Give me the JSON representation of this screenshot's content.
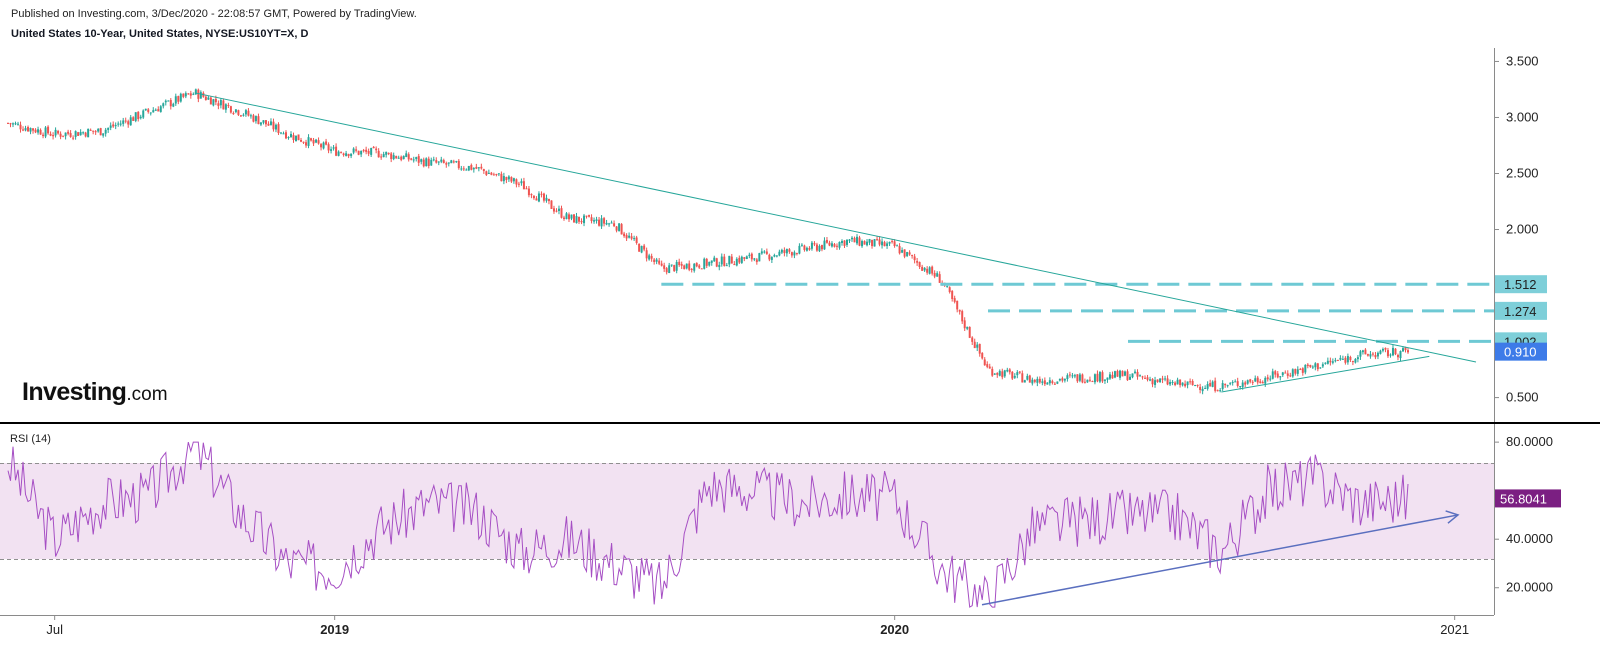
{
  "header": {
    "published": "Published on Investing.com, 3/Dec/2020 - 22:08:57 GMT, Powered by TradingView.",
    "symbol": "United States 10-Year, United States, NYSE:US10YT=X, D"
  },
  "logo": {
    "brand": "Investing",
    "suffix": ".com"
  },
  "colors": {
    "up": "#26a69a",
    "down": "#ef5350",
    "trendline": "#26a69a",
    "level": "#6ec9d4",
    "level_bg": "#7ecfd9",
    "current_bg": "#3d7be8",
    "rsi_line": "#a64fc4",
    "rsi_band": "#f2e2f2",
    "rsi_label_bg": "#7b1f82",
    "rsi_arrow": "#5a6fbf"
  },
  "chart_data": [
    {
      "type": "candlestick",
      "title": "United States 10-Year, United States, NYSE:US10YT=X, D",
      "y_ticks": [
        "3.500",
        "3.000",
        "2.500",
        "2.000",
        "1.500",
        "1.000",
        "0.500"
      ],
      "ylim": [
        0.3,
        3.62
      ],
      "x_ticks": [
        "Jul",
        "2019",
        "2020",
        "2021"
      ],
      "bold_x_ticks": [
        "2019",
        "2020"
      ],
      "x": [
        "2018-06",
        "2018-07",
        "2018-08",
        "2018-09",
        "2018-10",
        "2018-11",
        "2018-12",
        "2019-01",
        "2019-02",
        "2019-03",
        "2019-04",
        "2019-05",
        "2019-06",
        "2019-07",
        "2019-08",
        "2019-09",
        "2019-10",
        "2019-11",
        "2019-12",
        "2020-01",
        "2020-02",
        "2020-03",
        "2020-04",
        "2020-05",
        "2020-06",
        "2020-07",
        "2020-08",
        "2020-09",
        "2020-10",
        "2020-11",
        "2020-12"
      ],
      "y": [
        2.95,
        2.85,
        2.88,
        3.05,
        3.22,
        3.05,
        2.85,
        2.7,
        2.68,
        2.6,
        2.55,
        2.4,
        2.1,
        2.05,
        1.65,
        1.7,
        1.75,
        1.82,
        1.9,
        1.85,
        1.55,
        0.75,
        0.65,
        0.68,
        0.7,
        0.62,
        0.6,
        0.68,
        0.78,
        0.88,
        0.91
      ],
      "current_value": "0.910",
      "horizontal_levels": [
        "1.512",
        "1.274",
        "1.002"
      ],
      "series": [
        {
          "name": "",
          "type": "trendline",
          "from": [
            "2018-10",
            3.22
          ],
          "to": [
            "2020-12",
            0.8
          ]
        },
        {
          "name": "",
          "type": "trendline",
          "from": [
            "2020-08",
            0.55
          ],
          "to": [
            "2020-11",
            0.85
          ]
        }
      ]
    },
    {
      "type": "line",
      "title": "RSI (14)",
      "y_ticks": [
        "80.0000",
        "40.0000",
        "20.0000"
      ],
      "ylim": [
        10,
        85
      ],
      "band": [
        30,
        70
      ],
      "current_value": "56.8041",
      "x": [
        "2018-06",
        "2018-07",
        "2018-08",
        "2018-09",
        "2018-10",
        "2018-11",
        "2018-12",
        "2019-01",
        "2019-02",
        "2019-03",
        "2019-04",
        "2019-05",
        "2019-06",
        "2019-07",
        "2019-08",
        "2019-09",
        "2019-10",
        "2019-11",
        "2019-12",
        "2020-01",
        "2020-02",
        "2020-03",
        "2020-04",
        "2020-05",
        "2020-06",
        "2020-07",
        "2020-08",
        "2020-09",
        "2020-10",
        "2020-11",
        "2020-12"
      ],
      "y": [
        72,
        40,
        55,
        58,
        78,
        50,
        30,
        28,
        45,
        55,
        52,
        35,
        40,
        30,
        20,
        62,
        60,
        55,
        58,
        57,
        28,
        15,
        45,
        48,
        50,
        50,
        35,
        60,
        65,
        55,
        57
      ],
      "series": [
        {
          "name": "",
          "type": "trendline",
          "from": [
            "2020-03",
            13
          ],
          "to": [
            "2020-12",
            50
          ]
        }
      ]
    }
  ]
}
